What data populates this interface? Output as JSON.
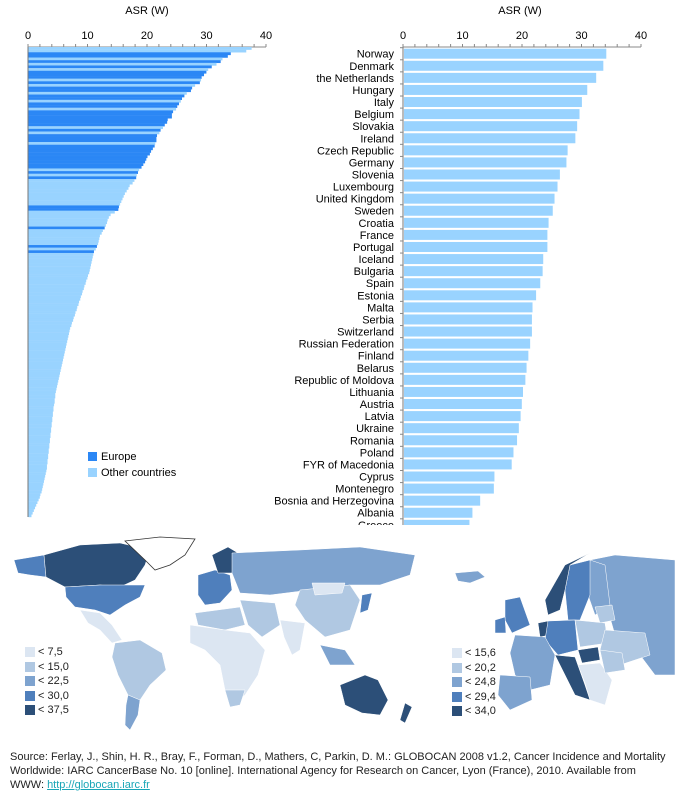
{
  "chart_data": [
    {
      "type": "bar",
      "orientation": "horizontal",
      "title": "ASR (W)",
      "xlabel": "ASR (W)",
      "xlim": [
        0,
        40
      ],
      "xticks": [
        "0",
        "10",
        "20",
        "30",
        "40"
      ],
      "legend": {
        "placement": "bottom-center",
        "entries": [
          {
            "label": "Europe",
            "color": "#2b87f5"
          },
          {
            "label": "Other countries",
            "color": "#99d3ff"
          }
        ]
      },
      "values": [
        37.5,
        36.6,
        34.0,
        33.5,
        32.6,
        32.3,
        31.6,
        30.8,
        30.2,
        29.9,
        29.5,
        29.1,
        29.0,
        28.8,
        28.0,
        27.5,
        27.3,
        26.6,
        26.2,
        25.8,
        25.6,
        25.3,
        25.0,
        24.8,
        24.3,
        24.1,
        24.1,
        23.4,
        23.3,
        22.9,
        22.6,
        22.2,
        22.0,
        21.6,
        21.5,
        21.5,
        21.3,
        21.2,
        20.9,
        20.6,
        20.4,
        20.0,
        19.8,
        19.6,
        19.3,
        19.0,
        18.6,
        18.4,
        18.2,
        18.1,
        17.8,
        17.5,
        17.0,
        16.8,
        16.5,
        16.2,
        16.0,
        15.8,
        15.6,
        15.4,
        15.2,
        15.1,
        14.5,
        13.8,
        13.5,
        13.3,
        13.2,
        13.0,
        12.8,
        12.5,
        12.3,
        12.0,
        11.9,
        11.8,
        11.7,
        11.5,
        11.3,
        11.0,
        10.9,
        10.8,
        10.7,
        10.6,
        10.5,
        10.4,
        10.3,
        10.2,
        10.0,
        9.9,
        9.7,
        9.6,
        9.4,
        9.3,
        9.1,
        9.0,
        8.8,
        8.7,
        8.5,
        8.4,
        8.2,
        8.1,
        7.9,
        7.8,
        7.6,
        7.5,
        7.3,
        7.2,
        7.0,
        6.9,
        6.8,
        6.7,
        6.6,
        6.5,
        6.4,
        6.3,
        6.2,
        6.1,
        6.0,
        5.9,
        5.8,
        5.7,
        5.6,
        5.5,
        5.4,
        5.3,
        5.2,
        5.1,
        5.0,
        4.9,
        4.8,
        4.7,
        4.6,
        4.5,
        4.5,
        4.4,
        4.4,
        4.3,
        4.2,
        4.2,
        4.1,
        4.1,
        4.0,
        4.0,
        3.9,
        3.9,
        3.8,
        3.8,
        3.7,
        3.7,
        3.6,
        3.6,
        3.5,
        3.5,
        3.4,
        3.4,
        3.3,
        3.3,
        3.2,
        3.2,
        3.1,
        3.1,
        3.0,
        2.9,
        2.8,
        2.7,
        2.6,
        2.5,
        2.4,
        2.3,
        2.2,
        2.0,
        1.9,
        1.7,
        1.5,
        1.3,
        1.1,
        0.9,
        0.7,
        0.5
      ],
      "europe_indices": [
        2,
        3,
        5,
        7,
        9,
        10,
        11,
        13,
        15,
        16,
        18,
        19,
        21,
        22,
        24,
        25,
        26,
        27,
        28,
        29,
        31,
        33,
        34,
        35,
        37,
        38,
        39,
        40,
        41,
        42,
        43,
        44,
        45,
        47,
        49,
        60,
        61,
        68,
        75,
        77
      ]
    },
    {
      "type": "bar",
      "orientation": "horizontal",
      "title": "ASR (W)",
      "xlabel": "ASR (W)",
      "xlim": [
        0,
        40
      ],
      "xticks": [
        "0",
        "10",
        "20",
        "30",
        "40"
      ],
      "color": "#99d3ff",
      "categories": [
        "Norway",
        "Denmark",
        "the Netherlands",
        "Hungary",
        "Italy",
        "Belgium",
        "Slovakia",
        "Ireland",
        "Czech Republic",
        "Germany",
        "Slovenia",
        "Luxembourg",
        "United Kingdom",
        "Sweden",
        "Croatia",
        "France",
        "Portugal",
        "Iceland",
        "Bulgaria",
        "Spain",
        "Estonia",
        "Malta",
        "Serbia",
        "Switzerland",
        "Russian Federation",
        "Finland",
        "Belarus",
        "Republic of Moldova",
        "Lithuania",
        "Austria",
        "Latvia",
        "Ukraine",
        "Romania",
        "Poland",
        "FYR of Macedonia",
        "Cyprus",
        "Montenegro",
        "Bosnia and Herzegovina",
        "Albania",
        "Greece"
      ],
      "values": [
        34.0,
        33.5,
        32.3,
        30.8,
        29.9,
        29.5,
        29.1,
        28.8,
        27.5,
        27.3,
        26.2,
        25.8,
        25.3,
        25.0,
        24.3,
        24.1,
        24.1,
        23.4,
        23.3,
        22.9,
        22.2,
        21.6,
        21.5,
        21.5,
        21.2,
        20.9,
        20.6,
        20.4,
        20.0,
        19.8,
        19.6,
        19.3,
        19.0,
        18.4,
        18.1,
        15.2,
        15.1,
        12.8,
        11.5,
        11.0
      ]
    }
  ],
  "maps": {
    "colors": [
      "#dce6f2",
      "#b0c8e2",
      "#7ea3cf",
      "#4f7fbc",
      "#2c4f78"
    ],
    "world_legend": [
      "< 7,5",
      "< 15,0",
      "< 22,5",
      "< 30,0",
      "< 37,5"
    ],
    "europe_legend": [
      "< 15,6",
      "< 20,2",
      "< 24,8",
      "< 29,4",
      "< 34,0"
    ]
  },
  "source": {
    "text": "Source: Ferlay, J., Shin, H. R., Bray, F., Forman, D., Mathers, C, Parkin, D. M.: GLOBOCAN 2008 v1.2, Cancer Incidence and Mortality Worldwide: IARC CancerBase No. 10 [online]. International Agency for Research on Cancer, Lyon (France), 2010. Available from WWW: ",
    "link": "http://globocan.iarc.fr"
  }
}
